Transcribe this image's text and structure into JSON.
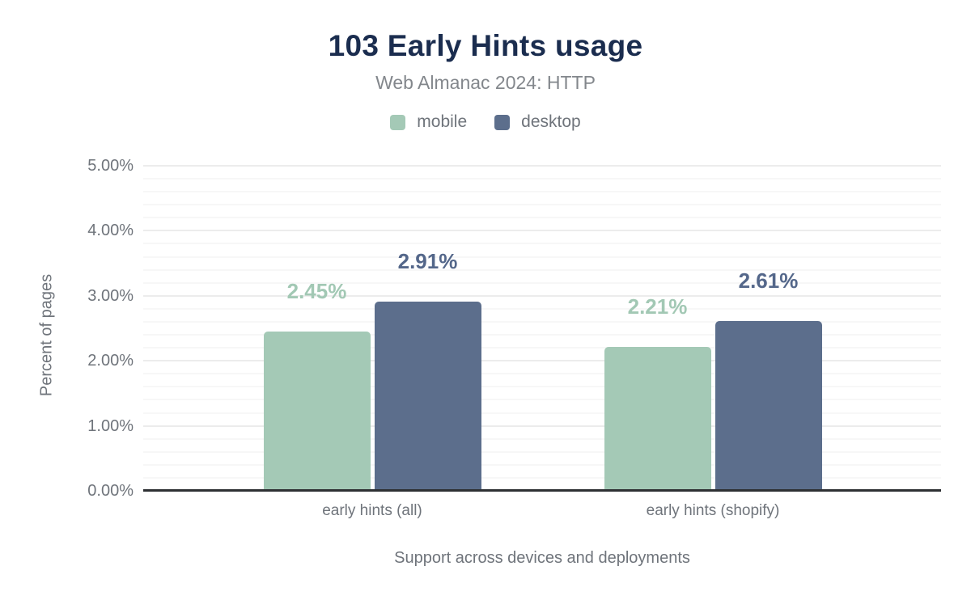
{
  "header": {
    "title": "103 Early Hints usage",
    "subtitle": "Web Almanac 2024: HTTP"
  },
  "chart_data": {
    "type": "bar",
    "title": "103 Early Hints usage",
    "subtitle": "Web Almanac 2024: HTTP",
    "categories": [
      "early hints (all)",
      "early hints (shopify)"
    ],
    "series": [
      {
        "name": "mobile",
        "color": "#a4c9b6",
        "label_color": "#a2c8b4",
        "values": [
          2.45,
          2.21
        ],
        "labels": [
          "2.45%",
          "2.21%"
        ]
      },
      {
        "name": "desktop",
        "color": "#5c6e8c",
        "label_color": "#54678a",
        "values": [
          2.91,
          2.61
        ],
        "labels": [
          "2.91%",
          "2.61%"
        ]
      }
    ],
    "xlabel": "Support across devices and deployments",
    "ylabel": "Percent of pages",
    "ylim": [
      0,
      5
    ],
    "yticks": [
      {
        "value": 0,
        "label": "0.00%"
      },
      {
        "value": 1,
        "label": "1.00%"
      },
      {
        "value": 2,
        "label": "2.00%"
      },
      {
        "value": 3,
        "label": "3.00%"
      },
      {
        "value": 4,
        "label": "4.00%"
      },
      {
        "value": 5,
        "label": "5.00%"
      }
    ],
    "grid": {
      "minor_step": 0.2,
      "major_step": 1.0,
      "minor_color": "#f7f7f7",
      "major_color": "#ececec"
    },
    "axis_line_color": "#2e3033",
    "title_color": "#1b2d4f",
    "legend_position": "top"
  }
}
